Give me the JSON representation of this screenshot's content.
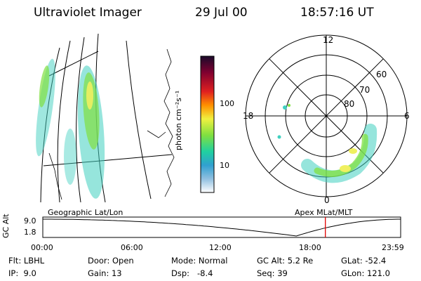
{
  "header": {
    "title": "Ultraviolet Imager",
    "date": "29 Jul 00",
    "time": "18:57:16 UT"
  },
  "colorbar": {
    "unit_label": "photon cm⁻²s⁻¹",
    "ticks": [
      "100",
      "10"
    ],
    "tick_values": [
      100,
      10
    ],
    "range": [
      2,
      1000
    ],
    "scale": "log"
  },
  "polar_plot": {
    "mlt_labels": [
      "12",
      "18",
      "6",
      "0"
    ],
    "mlat_labels": [
      "60",
      "70",
      "80"
    ]
  },
  "left_panel": {
    "caption": "Geographic Lat/Lon"
  },
  "right_panel": {
    "caption": "Apex MLat/MLT"
  },
  "timeline": {
    "ylabel": "GC Alt",
    "yticks": [
      "9.0",
      "1.8"
    ],
    "xticks": [
      "00:00",
      "06:00",
      "12:00",
      "18:00",
      "23:59"
    ],
    "current_time_hours": 18.95,
    "marker_color": "#e00000",
    "curve_min_time_hours": 17.0
  },
  "info": {
    "flt": {
      "label": "Flt:",
      "value": "LBHL"
    },
    "ip": {
      "label": "IP:",
      "value": "9.0"
    },
    "door": {
      "label": "Door:",
      "value": "Open"
    },
    "gain": {
      "label": "Gain:",
      "value": "13"
    },
    "mode": {
      "label": "Mode:",
      "value": "Normal"
    },
    "dsp": {
      "label": "Dsp:",
      "value": "-8.4"
    },
    "gcalt": {
      "label": "GC Alt:",
      "value": "5.2 Re"
    },
    "seq": {
      "label": "Seq:",
      "value": "39"
    },
    "glat": {
      "label": "GLat:",
      "value": "-52.4"
    },
    "glon": {
      "label": "GLon:",
      "value": "121.0"
    }
  },
  "colors": {
    "aurora_low": "#40d0c0",
    "aurora_mid": "#80e040",
    "aurora_high": "#f0f060",
    "timeline_marker": "#e00000"
  }
}
